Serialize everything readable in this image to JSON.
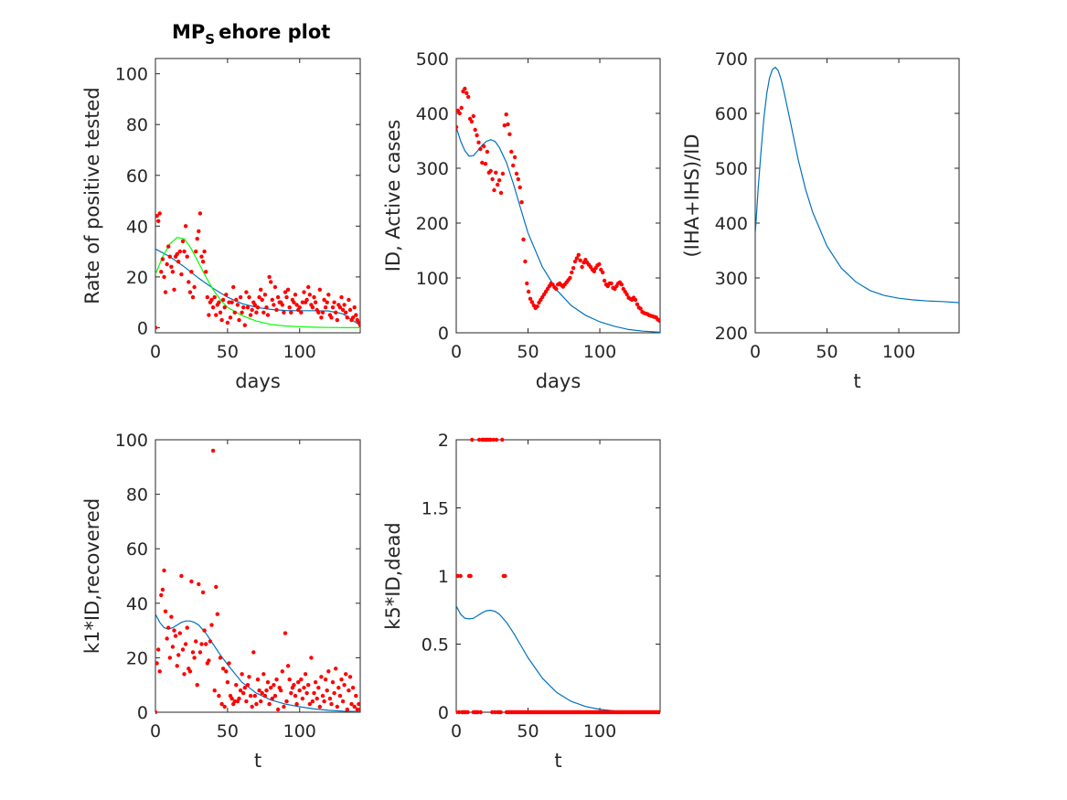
{
  "figure": {
    "title_main": "MP",
    "title_sub": "S",
    "title_rest": "ehore plot"
  },
  "chart_data": [
    {
      "type": "scatter",
      "title": "MP_S ehore plot",
      "xlabel": "days",
      "ylabel": "Rate of positive tested",
      "xlim": [
        0,
        142
      ],
      "ylim": [
        -2,
        106
      ],
      "xticks": [
        0,
        50,
        100
      ],
      "yticks": [
        0,
        20,
        40,
        60,
        80,
        100
      ],
      "grid": false,
      "points": {
        "color": "#ff0000",
        "y": [
          0,
          44,
          42,
          45,
          22,
          27,
          20,
          14,
          25,
          32,
          28,
          24,
          22,
          15,
          28,
          29,
          26,
          30,
          21,
          34,
          30,
          40,
          28,
          18,
          14,
          22,
          12,
          16,
          30,
          35,
          38,
          45,
          28,
          26,
          30,
          22,
          12,
          5,
          10,
          11,
          8,
          12,
          5,
          9,
          10,
          6,
          3,
          11,
          8,
          13,
          2,
          10,
          4,
          10,
          16,
          6,
          11,
          9,
          3,
          12,
          6,
          8,
          1,
          14,
          8,
          12,
          5,
          7,
          10,
          9,
          6,
          8,
          12,
          15,
          11,
          6,
          13,
          8,
          5,
          20,
          18,
          11,
          9,
          16,
          7,
          12,
          10,
          10,
          9,
          6,
          14,
          12,
          15,
          8,
          6,
          11,
          10,
          13,
          9,
          7,
          8,
          6,
          10,
          14,
          10,
          11,
          16,
          13,
          9,
          8,
          12,
          10,
          7,
          6,
          15,
          4,
          6,
          11,
          8,
          10,
          13,
          5,
          4,
          8,
          10,
          6,
          3,
          9,
          8,
          12,
          7,
          9,
          6,
          4,
          11,
          7,
          3,
          4,
          8,
          5,
          3,
          2,
          1
        ],
        "x_start": 0,
        "x_step": 1
      },
      "series": [
        {
          "color": "#0072bd",
          "x": [
            0,
            10,
            20,
            30,
            40,
            50,
            60,
            70,
            80,
            90,
            100,
            110,
            120,
            130,
            135,
            140,
            142
          ],
          "y": [
            31,
            28,
            24,
            19.5,
            15.5,
            12,
            9.5,
            8,
            7.2,
            6.8,
            6.7,
            6.7,
            6.6,
            5.5,
            3.5,
            1.7,
            1.3
          ]
        },
        {
          "color": "#00ff00",
          "x": [
            0,
            5,
            10,
            15,
            20,
            25,
            30,
            35,
            40,
            45,
            50,
            60,
            70,
            80,
            90,
            100,
            110,
            120,
            130,
            142
          ],
          "y": [
            21,
            28,
            33,
            35.5,
            35,
            31,
            25.5,
            20,
            15,
            11,
            8,
            4.8,
            2.6,
            1.3,
            0.7,
            0.4,
            0.2,
            0.1,
            0,
            0
          ]
        }
      ]
    },
    {
      "type": "scatter",
      "title": "",
      "xlabel": "days",
      "ylabel": "ID, Active cases",
      "xlim": [
        0,
        142
      ],
      "ylim": [
        0,
        500
      ],
      "xticks": [
        0,
        50,
        100
      ],
      "yticks": [
        0,
        100,
        200,
        300,
        400,
        500
      ],
      "grid": false,
      "points": {
        "color": "#ff0000",
        "y": [
          375,
          405,
          400,
          410,
          440,
          445,
          437,
          430,
          390,
          385,
          395,
          370,
          360,
          347,
          335,
          310,
          340,
          308,
          330,
          292,
          295,
          280,
          260,
          292,
          270,
          278,
          255,
          290,
          378,
          398,
          380,
          362,
          330,
          305,
          320,
          290,
          280,
          265,
          238,
          170,
          130,
          90,
          75,
          62,
          56,
          50,
          45,
          48,
          55,
          60,
          65,
          70,
          75,
          80,
          85,
          90,
          88,
          83,
          80,
          88,
          90,
          87,
          84,
          88,
          92,
          96,
          100,
          110,
          118,
          130,
          136,
          142,
          132,
          120,
          128,
          133,
          128,
          124,
          120,
          115,
          112,
          118,
          123,
          125,
          115,
          110,
          95,
          88,
          85,
          90,
          90,
          82,
          80,
          85,
          90,
          92,
          88,
          80,
          75,
          70,
          64,
          62,
          60,
          64,
          60,
          52,
          46,
          44,
          38,
          36,
          35,
          34,
          32,
          31,
          30,
          29,
          28,
          24,
          22,
          20
        ],
        "x_start": 0,
        "x_step": 1.2
      },
      "series": [
        {
          "color": "#0072bd",
          "x": [
            0,
            3,
            6,
            9,
            12,
            15,
            18,
            21,
            24,
            27,
            30,
            35,
            40,
            45,
            50,
            60,
            70,
            80,
            90,
            100,
            110,
            120,
            130,
            142
          ],
          "y": [
            375,
            350,
            332,
            322,
            323,
            332,
            342,
            349,
            352,
            349,
            338,
            310,
            270,
            225,
            182,
            120,
            78,
            50,
            32,
            20,
            12,
            6,
            3,
            1
          ]
        }
      ]
    },
    {
      "type": "line",
      "title": "",
      "xlabel": "t",
      "ylabel": "(IHA+IHS)/ID",
      "xlim": [
        0,
        142
      ],
      "ylim": [
        200,
        700
      ],
      "xticks": [
        0,
        50,
        100
      ],
      "yticks": [
        200,
        300,
        400,
        500,
        600,
        700
      ],
      "grid": false,
      "series": [
        {
          "color": "#0072bd",
          "x": [
            0,
            2,
            4,
            6,
            8,
            10,
            12,
            14,
            16,
            18,
            20,
            25,
            30,
            35,
            40,
            50,
            60,
            70,
            80,
            90,
            100,
            110,
            120,
            130,
            142
          ],
          "y": [
            380,
            460,
            530,
            590,
            636,
            665,
            680,
            684,
            678,
            662,
            640,
            578,
            515,
            462,
            420,
            358,
            318,
            293,
            277,
            268,
            263,
            260,
            258,
            257,
            255
          ]
        }
      ]
    },
    {
      "type": "scatter",
      "title": "",
      "xlabel": "t",
      "ylabel": "k1*ID,recovered",
      "xlim": [
        0,
        142
      ],
      "ylim": [
        0,
        100
      ],
      "xticks": [
        0,
        50,
        100
      ],
      "yticks": [
        0,
        20,
        40,
        60,
        80,
        100
      ],
      "grid": false,
      "points": {
        "color": "#ff0000",
        "y": [
          0,
          18,
          23,
          15,
          43,
          45,
          52,
          37,
          27,
          31,
          20,
          35,
          24,
          30,
          28,
          17,
          21,
          29,
          50,
          23,
          14,
          25,
          31,
          16,
          15,
          48,
          22,
          20,
          26,
          10,
          47,
          22,
          25,
          44,
          30,
          25,
          18,
          19,
          26,
          32,
          96,
          8,
          46,
          36,
          6,
          20,
          3,
          16,
          2,
          15,
          11,
          18,
          6,
          5,
          3,
          4,
          10,
          4,
          5,
          8,
          14,
          7,
          9,
          4,
          10,
          13,
          6,
          2,
          22,
          6,
          3,
          12,
          8,
          4,
          7,
          14,
          6,
          8,
          11,
          3,
          9,
          5,
          10,
          6,
          12,
          1,
          9,
          8,
          15,
          2,
          29,
          4,
          17,
          12,
          7,
          9,
          10,
          6,
          3,
          11,
          8,
          12,
          5,
          9,
          14,
          7,
          10,
          3,
          20,
          4,
          7,
          11,
          5,
          9,
          2,
          13,
          6,
          4,
          12,
          8,
          15,
          5,
          3,
          11,
          7,
          16,
          2,
          9,
          6,
          12,
          4,
          10,
          14,
          1,
          8,
          13,
          3,
          9,
          2,
          6,
          1,
          3,
          1
        ],
        "x_start": 0,
        "x_step": 1
      },
      "series": [
        {
          "color": "#0072bd",
          "x": [
            0,
            3,
            6,
            9,
            12,
            15,
            18,
            21,
            24,
            27,
            30,
            35,
            40,
            45,
            50,
            60,
            70,
            80,
            90,
            100,
            110,
            120,
            130,
            142
          ],
          "y": [
            36,
            33,
            31,
            30.5,
            31,
            32,
            33,
            33.5,
            33.5,
            33,
            32,
            29,
            25,
            21,
            17.5,
            11,
            7,
            4.5,
            3,
            2,
            1.2,
            0.7,
            0.4,
            0.2
          ]
        }
      ]
    },
    {
      "type": "scatter",
      "title": "",
      "xlabel": "t",
      "ylabel": "k5*ID,dead",
      "xlim": [
        0,
        142
      ],
      "ylim": [
        0,
        2
      ],
      "xticks": [
        0,
        50,
        100
      ],
      "yticks": [
        0,
        0.5,
        1,
        1.5,
        2
      ],
      "grid": false,
      "points": {
        "color": "#ff0000",
        "y": [
          0,
          1,
          0,
          1,
          0,
          0,
          0,
          0,
          0,
          1,
          1,
          2,
          0,
          0,
          0,
          0,
          2,
          0,
          2,
          2,
          2,
          2,
          2,
          2,
          2,
          0,
          2,
          0,
          2,
          0,
          0,
          0,
          2,
          1,
          1,
          0,
          0,
          0,
          0,
          0,
          0,
          0,
          0,
          0,
          0,
          0,
          0,
          0,
          0,
          0,
          0,
          0,
          0,
          0,
          0,
          0,
          0,
          0,
          0,
          0,
          0,
          0,
          0,
          0,
          0,
          0,
          0,
          0,
          0,
          0,
          0,
          0,
          0,
          0,
          0,
          0,
          0,
          0,
          0,
          0,
          0,
          0,
          0,
          0,
          0,
          0,
          0,
          0,
          0,
          0,
          0,
          0,
          0,
          0,
          0,
          0,
          0,
          0,
          0,
          0,
          0,
          0,
          0,
          0,
          0,
          0,
          0,
          0,
          0,
          0,
          0,
          0,
          0,
          0,
          0,
          0,
          0,
          0,
          0,
          0,
          0,
          0,
          0,
          0,
          0,
          0,
          0,
          0,
          0,
          0,
          0,
          0,
          0,
          0,
          0,
          0,
          0,
          0,
          0,
          0,
          0,
          0,
          0
        ],
        "x_start": 0,
        "x_step": 1
      },
      "series": [
        {
          "color": "#0072bd",
          "x": [
            0,
            3,
            6,
            9,
            12,
            15,
            18,
            21,
            24,
            27,
            30,
            35,
            40,
            45,
            50,
            60,
            70,
            80,
            90,
            100,
            110,
            120,
            130,
            142
          ],
          "y": [
            0.78,
            0.72,
            0.69,
            0.685,
            0.69,
            0.71,
            0.73,
            0.745,
            0.748,
            0.74,
            0.72,
            0.66,
            0.58,
            0.49,
            0.4,
            0.25,
            0.145,
            0.08,
            0.042,
            0.021,
            0.01,
            0.005,
            0.002,
            0.001
          ]
        }
      ]
    }
  ]
}
